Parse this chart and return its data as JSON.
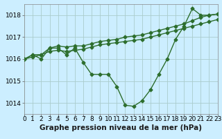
{
  "xlabel": "Graphe pression niveau de la mer (hPa)",
  "background_color": "#cceeff",
  "grid_color": "#aacccc",
  "line_color": "#2d6e2d",
  "xlim": [
    0,
    23
  ],
  "ylim": [
    1013.5,
    1018.5
  ],
  "yticks": [
    1014,
    1015,
    1016,
    1017,
    1018
  ],
  "xticks": [
    0,
    1,
    2,
    3,
    4,
    5,
    6,
    7,
    8,
    9,
    10,
    11,
    12,
    13,
    14,
    15,
    16,
    17,
    18,
    19,
    20,
    21,
    22,
    23
  ],
  "series": [
    [
      1016.0,
      1016.2,
      1016.0,
      1016.5,
      1016.5,
      1016.2,
      1016.5,
      1015.85,
      1015.3,
      1015.3,
      1015.3,
      1014.75,
      1013.9,
      1013.85,
      1014.1,
      1014.6,
      1015.3,
      1016.0,
      1016.9,
      1017.5,
      1018.3,
      1018.0,
      1018.0,
      1018.05
    ],
    [
      1016.0,
      1016.2,
      1016.2,
      1016.5,
      1016.6,
      1016.55,
      1016.6,
      1016.6,
      1016.7,
      1016.8,
      1016.85,
      1016.9,
      1017.0,
      1017.05,
      1017.1,
      1017.2,
      1017.3,
      1017.4,
      1017.5,
      1017.6,
      1017.75,
      1017.9,
      1018.0,
      1018.05
    ],
    [
      1016.0,
      1016.1,
      1016.2,
      1016.35,
      1016.4,
      1016.35,
      1016.4,
      1016.45,
      1016.55,
      1016.65,
      1016.7,
      1016.75,
      1016.8,
      1016.85,
      1016.9,
      1017.0,
      1017.1,
      1017.2,
      1017.3,
      1017.4,
      1017.5,
      1017.6,
      1017.7,
      1017.8
    ]
  ],
  "marker": "D",
  "markersize": 2.5,
  "linewidth": 1.0,
  "tick_fontsize": 6.5,
  "label_fontsize": 7.5
}
